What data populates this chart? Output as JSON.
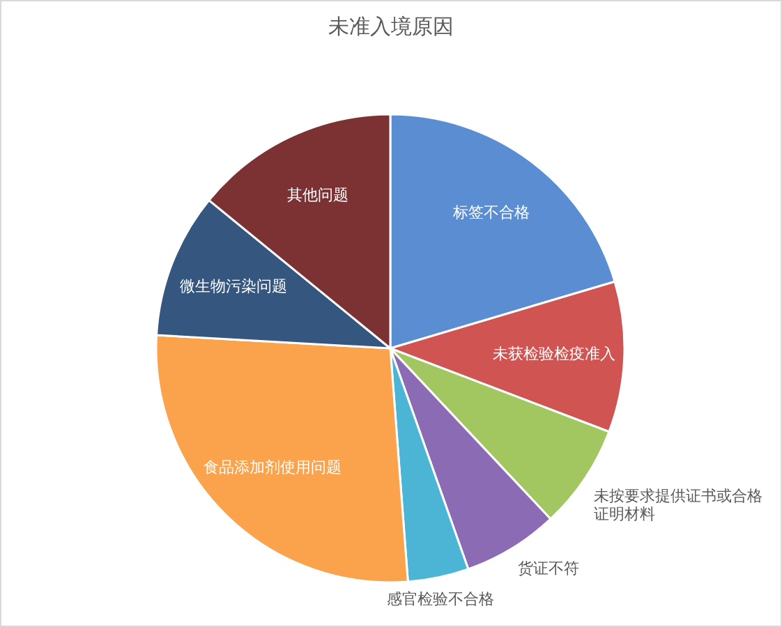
{
  "chart_data": {
    "type": "pie",
    "title": "未准入境原因",
    "categories": [
      "标签不合格",
      "未获检验检疫准入",
      "未按要求提供证书或合格证明材料",
      "货证不符",
      "感官检验不合格",
      "食品添加剂使用问题",
      "微生物污染问题",
      "其他问题"
    ],
    "values": [
      20.4,
      10.4,
      7.2,
      6.6,
      4.2,
      27.1,
      10.0,
      14.1
    ],
    "colors": [
      "#5b8dd2",
      "#d05452",
      "#a2c660",
      "#8b6bb4",
      "#4cb5d5",
      "#fba24d",
      "#34567f",
      "#7c3133"
    ]
  }
}
